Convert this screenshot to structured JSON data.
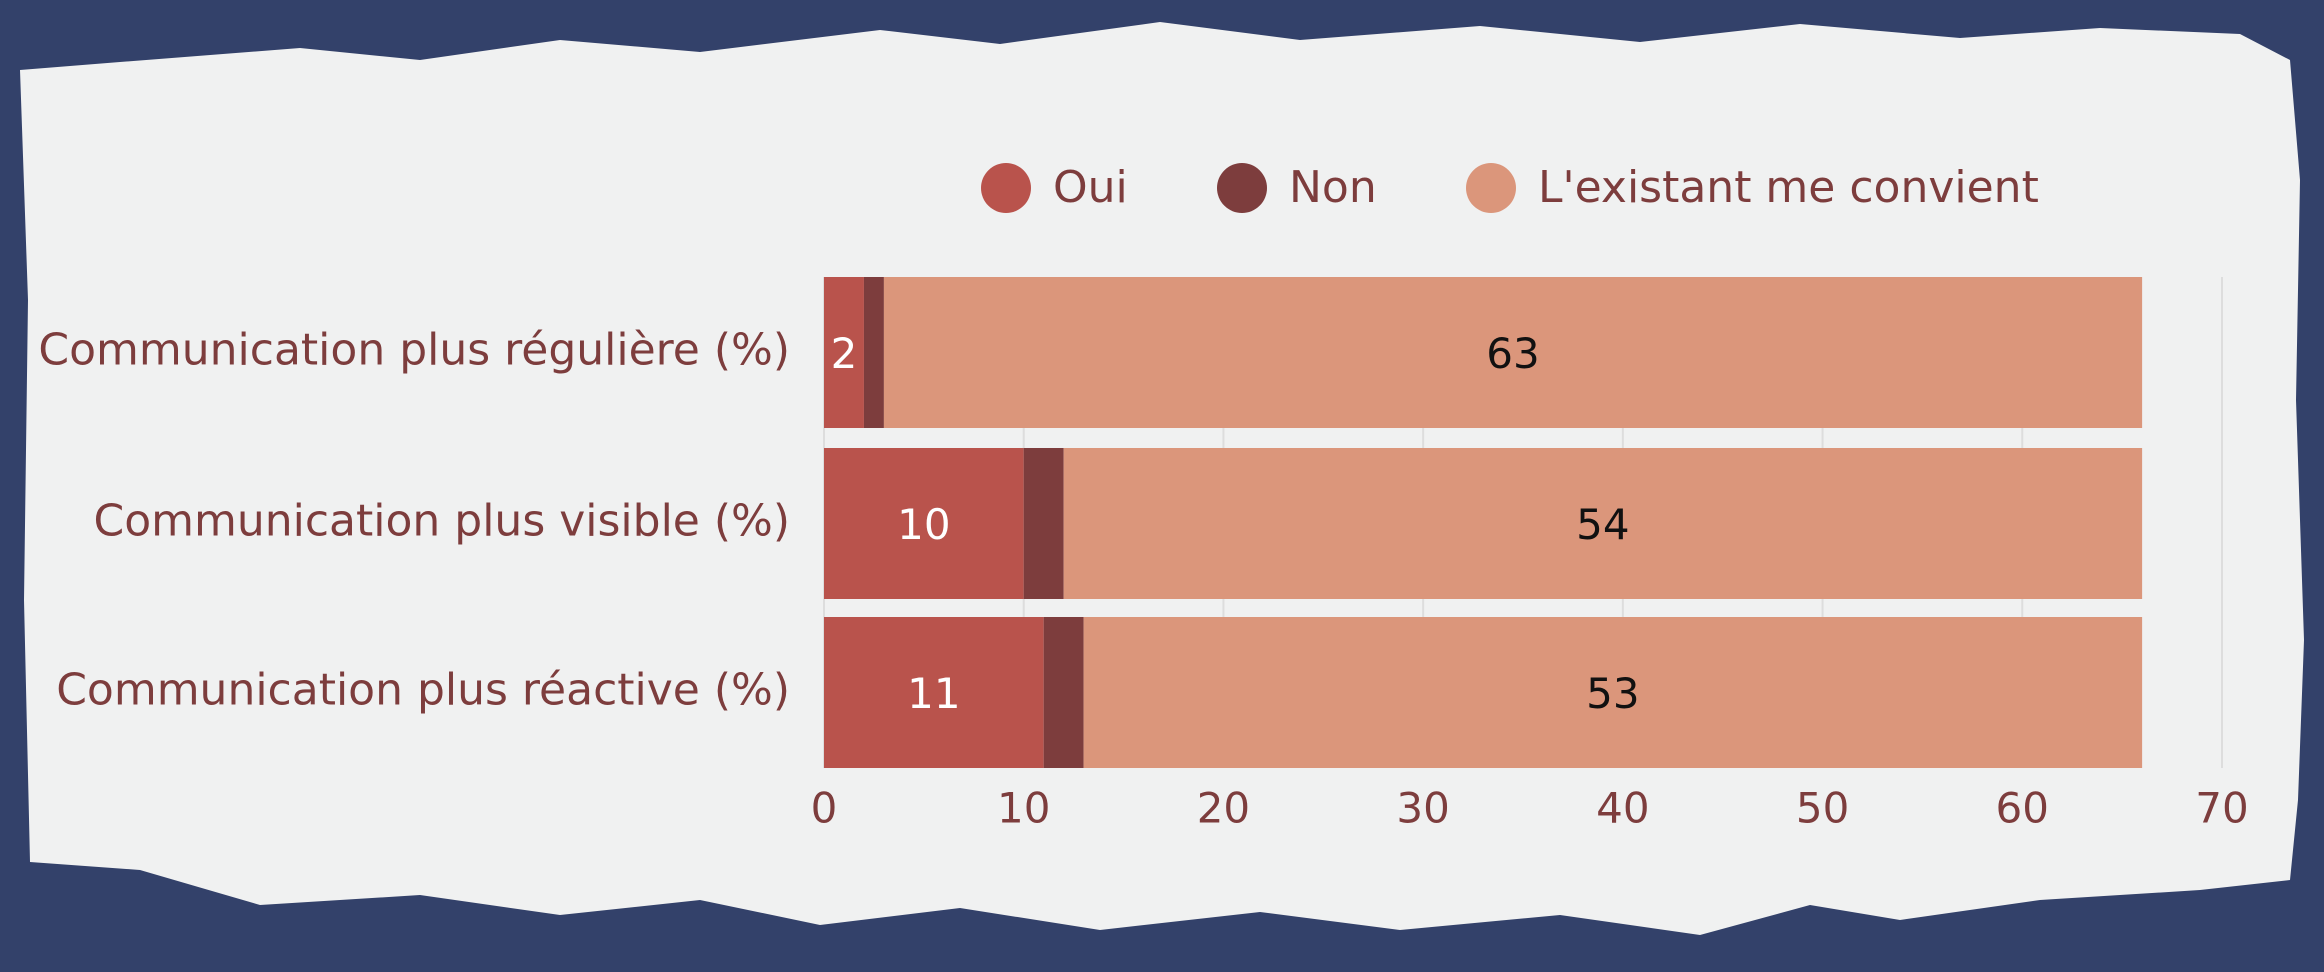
{
  "chart_data": {
    "type": "stacked-bar-horizontal",
    "categories": [
      "Communication plus régulière (%)",
      "Communication plus visible (%)",
      "Communication plus réactive (%)"
    ],
    "series": [
      {
        "name": "Oui",
        "color": "#b9534c",
        "values": [
          2,
          10,
          11
        ]
      },
      {
        "name": "Non",
        "color": "#7d3d3d",
        "values": [
          1,
          2,
          2
        ]
      },
      {
        "name": "L'existant me convient",
        "color": "#db967b",
        "values": [
          63,
          54,
          53
        ]
      }
    ],
    "xlim": [
      0,
      70
    ],
    "xticks": [
      0,
      10,
      20,
      30,
      40,
      50,
      60,
      70
    ],
    "grid": true,
    "legend": "top"
  }
}
